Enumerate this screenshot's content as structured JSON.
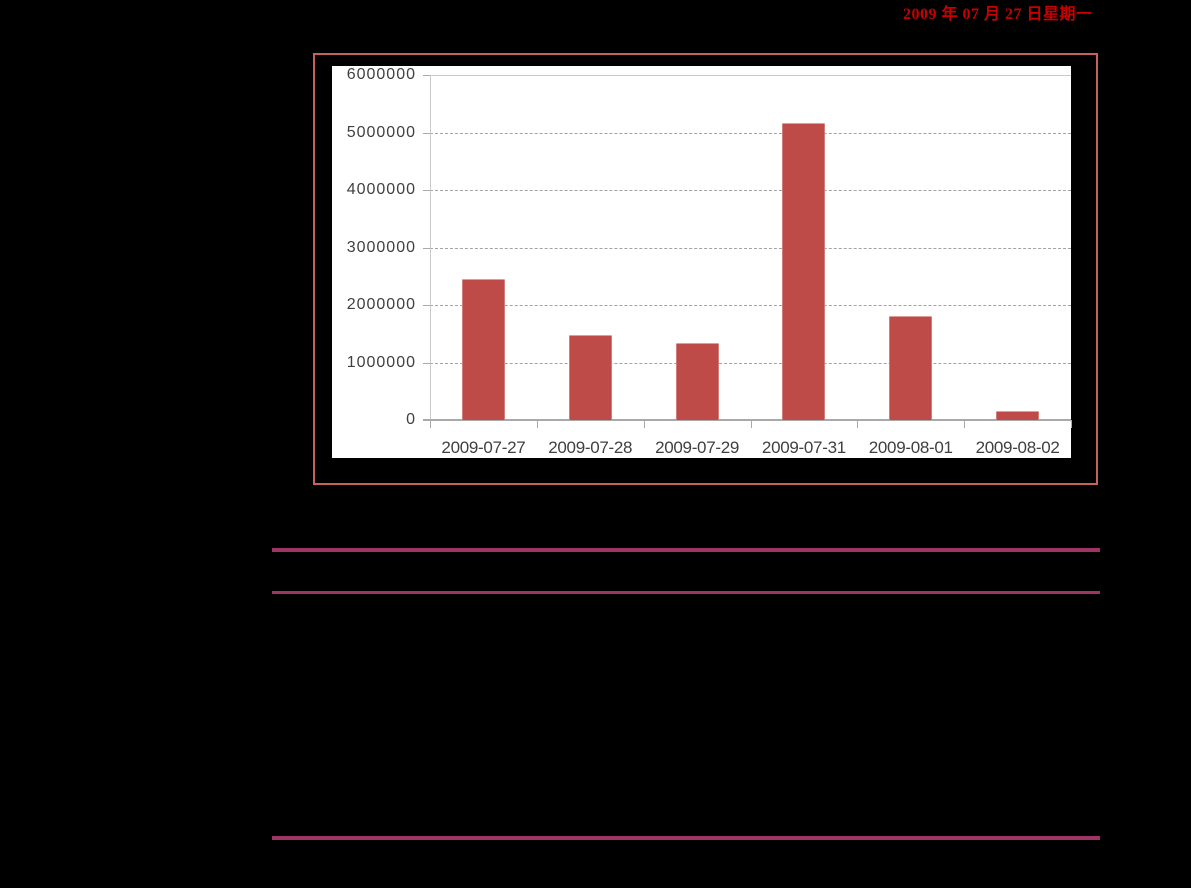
{
  "document": {
    "background_color": "#000000",
    "date_header": "2009 年 07 月 27 日星期一",
    "date_color": "#C80000",
    "rule_color": "#9E3464"
  },
  "chart_frame": {
    "border_color": "#C6615B"
  },
  "chart_data": {
    "type": "bar",
    "title": "",
    "xlabel": "",
    "ylabel": "",
    "categories": [
      "2009-07-27",
      "2009-07-28",
      "2009-07-29",
      "2009-07-31",
      "2009-08-01",
      "2009-08-02"
    ],
    "values": [
      2460000,
      1480000,
      1340000,
      5170000,
      1810000,
      160000
    ],
    "ylim": [
      0,
      6000000
    ],
    "yticks": [
      0,
      1000000,
      2000000,
      3000000,
      4000000,
      5000000,
      6000000
    ],
    "grid": true,
    "legend": "none",
    "plot_background": "#FFFFFF",
    "bar_color": "#BE4B48",
    "gridline_color": "#A3A3A3",
    "axis_line_color": "#A9A9A9",
    "tick_label_color": "#404040"
  }
}
